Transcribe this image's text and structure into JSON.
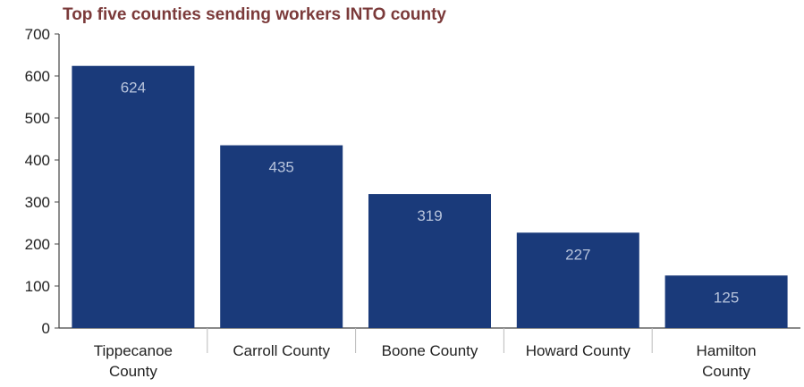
{
  "chart_data": {
    "type": "bar",
    "title": "Top five counties sending workers INTO county",
    "categories": [
      [
        "Tippecanoe",
        "County"
      ],
      [
        "Carroll County"
      ],
      [
        "Boone County"
      ],
      [
        "Howard County"
      ],
      [
        "Hamilton",
        "County"
      ]
    ],
    "values": [
      624,
      435,
      319,
      227,
      125
    ],
    "data_labels": [
      "624",
      "435",
      "319",
      "227",
      "125"
    ],
    "yticks": [
      0,
      100,
      200,
      300,
      400,
      500,
      600,
      700
    ],
    "ylim": [
      0,
      700
    ],
    "xlabel": "",
    "ylabel": "",
    "grid": false,
    "legend": "none",
    "colors": {
      "bar": "#1a3a7a",
      "data_label": "#b8c4dc",
      "axis": "#444444",
      "tick_text": "#222222",
      "title": "#7b3a3a"
    }
  }
}
